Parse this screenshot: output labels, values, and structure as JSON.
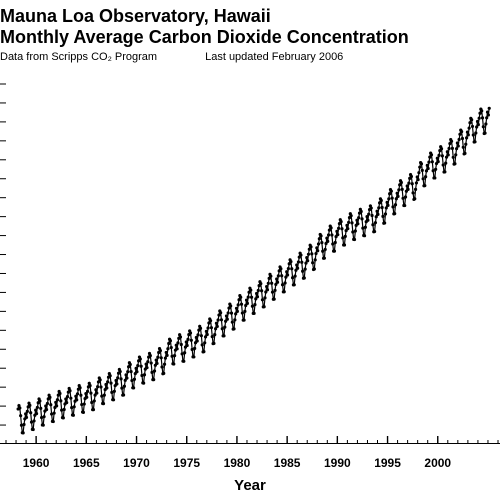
{
  "chart": {
    "type": "line",
    "title_line1": "Mauna Loa Observatory, Hawaii",
    "title_line2": "Monthly Average Carbon Dioxide Concentration",
    "subtitle_left": "Data from Scripps CO₂ Program",
    "subtitle_right": "Last updated February 2006",
    "xlabel": "Year",
    "title_fontsize": 18,
    "label_fontsize": 15,
    "tick_fontsize": 12,
    "background_color": "#ffffff",
    "line_color": "#000000",
    "marker_color": "#000000",
    "line_width": 1.2,
    "marker_radius": 1.6,
    "xlim": [
      1957,
      2006
    ],
    "ylim": [
      310,
      385
    ],
    "xticks_major": [
      1960,
      1965,
      1970,
      1975,
      1980,
      1985,
      1990,
      1995,
      2000
    ],
    "xticks_minor_step": 1,
    "yticks_count": 20,
    "series": {
      "start_year": 1958,
      "start_month": 3,
      "annual_mean": [
        315.3,
        315.97,
        316.91,
        317.64,
        318.45,
        318.99,
        319.62,
        320.04,
        321.38,
        322.16,
        323.04,
        324.62,
        325.68,
        326.32,
        327.45,
        329.68,
        330.18,
        331.08,
        332.05,
        333.78,
        335.41,
        336.78,
        338.68,
        340.1,
        341.44,
        343.03,
        344.58,
        346.04,
        347.39,
        349.16,
        351.56,
        353.07,
        354.35,
        355.57,
        356.38,
        357.07,
        358.82,
        360.8,
        362.59,
        363.71,
        366.65,
        368.33,
        369.52,
        371.13,
        373.22,
        375.77,
        377.49,
        379.8
      ],
      "seasonal_cycle": [
        -0.1,
        1.1,
        2.0,
        2.7,
        2.2,
        0.6,
        -1.4,
        -3.0,
        -3.1,
        -1.4,
        -0.3,
        0.7
      ]
    }
  }
}
